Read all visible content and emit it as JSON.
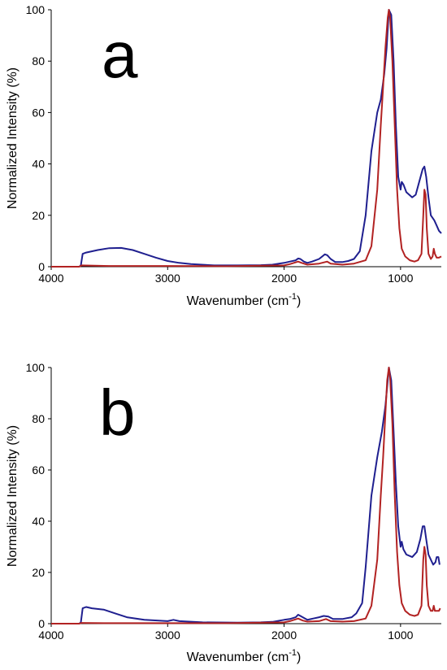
{
  "chart_data": [
    {
      "type": "line",
      "panel_label": "a",
      "xlabel_main": "Wavenumber (cm",
      "xlabel_sup": "-1",
      "xlabel_close": ")",
      "ylabel": "Normalized Intensity (%)",
      "xlim": [
        4000,
        650
      ],
      "ylim": [
        0,
        100
      ],
      "x_reversed": true,
      "x_ticks": [
        4000,
        3000,
        2000,
        1000
      ],
      "y_ticks": [
        0,
        20,
        40,
        60,
        80,
        100
      ],
      "grid": false,
      "series": [
        {
          "color": "#1f1f8f",
          "points": [
            [
              4000,
              0
            ],
            [
              3760,
              0
            ],
            [
              3745,
              0.5
            ],
            [
              3730,
              5
            ],
            [
              3700,
              5.5
            ],
            [
              3600,
              6.5
            ],
            [
              3500,
              7.2
            ],
            [
              3400,
              7.3
            ],
            [
              3300,
              6.5
            ],
            [
              3200,
              5
            ],
            [
              3100,
              3.5
            ],
            [
              3000,
              2.2
            ],
            [
              2900,
              1.5
            ],
            [
              2800,
              1
            ],
            [
              2600,
              0.5
            ],
            [
              2400,
              0.5
            ],
            [
              2200,
              0.6
            ],
            [
              2100,
              0.8
            ],
            [
              2000,
              1.5
            ],
            [
              1950,
              2
            ],
            [
              1900,
              2.5
            ],
            [
              1880,
              3.2
            ],
            [
              1860,
              3
            ],
            [
              1830,
              2
            ],
            [
              1800,
              1.5
            ],
            [
              1760,
              2
            ],
            [
              1700,
              3
            ],
            [
              1650,
              4.8
            ],
            [
              1630,
              4.5
            ],
            [
              1600,
              3
            ],
            [
              1560,
              1.8
            ],
            [
              1500,
              1.8
            ],
            [
              1450,
              2.2
            ],
            [
              1400,
              3
            ],
            [
              1350,
              6
            ],
            [
              1300,
              20
            ],
            [
              1250,
              45
            ],
            [
              1200,
              60
            ],
            [
              1170,
              65
            ],
            [
              1140,
              75
            ],
            [
              1120,
              85
            ],
            [
              1100,
              100
            ],
            [
              1080,
              98
            ],
            [
              1060,
              80
            ],
            [
              1040,
              55
            ],
            [
              1020,
              35
            ],
            [
              1000,
              30
            ],
            [
              990,
              33
            ],
            [
              975,
              32
            ],
            [
              950,
              29
            ],
            [
              900,
              27
            ],
            [
              870,
              28
            ],
            [
              840,
              33
            ],
            [
              810,
              38
            ],
            [
              795,
              39
            ],
            [
              780,
              35
            ],
            [
              760,
              27
            ],
            [
              740,
              20
            ],
            [
              710,
              18
            ],
            [
              690,
              16
            ],
            [
              670,
              14
            ],
            [
              650,
              13
            ]
          ]
        },
        {
          "color": "#b22222",
          "points": [
            [
              4000,
              0
            ],
            [
              3760,
              0
            ],
            [
              3740,
              0.5
            ],
            [
              3500,
              0.3
            ],
            [
              3000,
              0.3
            ],
            [
              2500,
              0.2
            ],
            [
              2000,
              0.5
            ],
            [
              1950,
              1
            ],
            [
              1880,
              2
            ],
            [
              1850,
              1.5
            ],
            [
              1800,
              0.8
            ],
            [
              1700,
              1.2
            ],
            [
              1630,
              2
            ],
            [
              1600,
              1.2
            ],
            [
              1500,
              0.8
            ],
            [
              1400,
              1.2
            ],
            [
              1300,
              2.5
            ],
            [
              1250,
              8
            ],
            [
              1200,
              30
            ],
            [
              1170,
              55
            ],
            [
              1150,
              70
            ],
            [
              1130,
              85
            ],
            [
              1110,
              97
            ],
            [
              1100,
              100
            ],
            [
              1090,
              97
            ],
            [
              1070,
              80
            ],
            [
              1050,
              55
            ],
            [
              1030,
              30
            ],
            [
              1010,
              15
            ],
            [
              990,
              7
            ],
            [
              960,
              4
            ],
            [
              920,
              2.5
            ],
            [
              880,
              2
            ],
            [
              850,
              2.5
            ],
            [
              820,
              5
            ],
            [
              805,
              20
            ],
            [
              795,
              30
            ],
            [
              785,
              28
            ],
            [
              775,
              15
            ],
            [
              760,
              5
            ],
            [
              740,
              3
            ],
            [
              725,
              4
            ],
            [
              715,
              7
            ],
            [
              705,
              5
            ],
            [
              690,
              3.5
            ],
            [
              670,
              3.5
            ],
            [
              650,
              4
            ]
          ]
        }
      ]
    },
    {
      "type": "line",
      "panel_label": "b",
      "xlabel_main": "Wavenumber (cm",
      "xlabel_sup": "-1",
      "xlabel_close": ")",
      "ylabel": "Normalized Intensity (%)",
      "xlim": [
        4000,
        650
      ],
      "ylim": [
        0,
        100
      ],
      "x_reversed": true,
      "x_ticks": [
        4000,
        3000,
        2000,
        1000
      ],
      "y_ticks": [
        0,
        20,
        40,
        60,
        80,
        100
      ],
      "grid": false,
      "series": [
        {
          "color": "#1f1f8f",
          "points": [
            [
              4000,
              0
            ],
            [
              3760,
              0
            ],
            [
              3745,
              0.5
            ],
            [
              3730,
              6
            ],
            [
              3700,
              6.5
            ],
            [
              3650,
              6
            ],
            [
              3550,
              5.5
            ],
            [
              3450,
              4
            ],
            [
              3350,
              2.5
            ],
            [
              3200,
              1.5
            ],
            [
              3000,
              1
            ],
            [
              2950,
              1.5
            ],
            [
              2900,
              1
            ],
            [
              2700,
              0.5
            ],
            [
              2400,
              0.4
            ],
            [
              2200,
              0.5
            ],
            [
              2100,
              0.7
            ],
            [
              2000,
              1.5
            ],
            [
              1950,
              1.8
            ],
            [
              1900,
              2.5
            ],
            [
              1880,
              3.5
            ],
            [
              1860,
              3
            ],
            [
              1820,
              2
            ],
            [
              1800,
              1.5
            ],
            [
              1750,
              2
            ],
            [
              1700,
              2.5
            ],
            [
              1660,
              3
            ],
            [
              1620,
              2.8
            ],
            [
              1580,
              1.8
            ],
            [
              1500,
              1.8
            ],
            [
              1420,
              2.5
            ],
            [
              1380,
              4
            ],
            [
              1330,
              8
            ],
            [
              1300,
              22
            ],
            [
              1250,
              50
            ],
            [
              1200,
              65
            ],
            [
              1160,
              75
            ],
            [
              1130,
              85
            ],
            [
              1110,
              95
            ],
            [
              1100,
              100
            ],
            [
              1080,
              95
            ],
            [
              1060,
              75
            ],
            [
              1040,
              55
            ],
            [
              1020,
              38
            ],
            [
              1000,
              30
            ],
            [
              990,
              32
            ],
            [
              975,
              29
            ],
            [
              950,
              27
            ],
            [
              900,
              26
            ],
            [
              860,
              28
            ],
            [
              830,
              33
            ],
            [
              810,
              38
            ],
            [
              795,
              38
            ],
            [
              780,
              33
            ],
            [
              760,
              27
            ],
            [
              740,
              25
            ],
            [
              720,
              23
            ],
            [
              700,
              24
            ],
            [
              690,
              26
            ],
            [
              675,
              26
            ],
            [
              665,
              23
            ]
          ]
        },
        {
          "color": "#b22222",
          "points": [
            [
              4000,
              0
            ],
            [
              3760,
              0
            ],
            [
              3740,
              0.3
            ],
            [
              3500,
              0.2
            ],
            [
              3000,
              0.2
            ],
            [
              2500,
              0.2
            ],
            [
              2000,
              0.5
            ],
            [
              1950,
              1
            ],
            [
              1880,
              2
            ],
            [
              1840,
              1.2
            ],
            [
              1800,
              0.8
            ],
            [
              1700,
              1
            ],
            [
              1640,
              1.8
            ],
            [
              1600,
              1
            ],
            [
              1500,
              0.8
            ],
            [
              1400,
              1
            ],
            [
              1300,
              2
            ],
            [
              1250,
              7
            ],
            [
              1200,
              25
            ],
            [
              1170,
              50
            ],
            [
              1150,
              65
            ],
            [
              1130,
              82
            ],
            [
              1115,
              95
            ],
            [
              1100,
              100
            ],
            [
              1090,
              96
            ],
            [
              1070,
              78
            ],
            [
              1050,
              50
            ],
            [
              1030,
              28
            ],
            [
              1010,
              15
            ],
            [
              990,
              8
            ],
            [
              960,
              5
            ],
            [
              920,
              3.5
            ],
            [
              880,
              3
            ],
            [
              850,
              3.5
            ],
            [
              820,
              7
            ],
            [
              805,
              25
            ],
            [
              795,
              30
            ],
            [
              785,
              27
            ],
            [
              775,
              15
            ],
            [
              760,
              7
            ],
            [
              740,
              5
            ],
            [
              725,
              5
            ],
            [
              715,
              7
            ],
            [
              705,
              5
            ],
            [
              690,
              5
            ],
            [
              670,
              5
            ],
            [
              660,
              6
            ]
          ]
        }
      ]
    }
  ]
}
